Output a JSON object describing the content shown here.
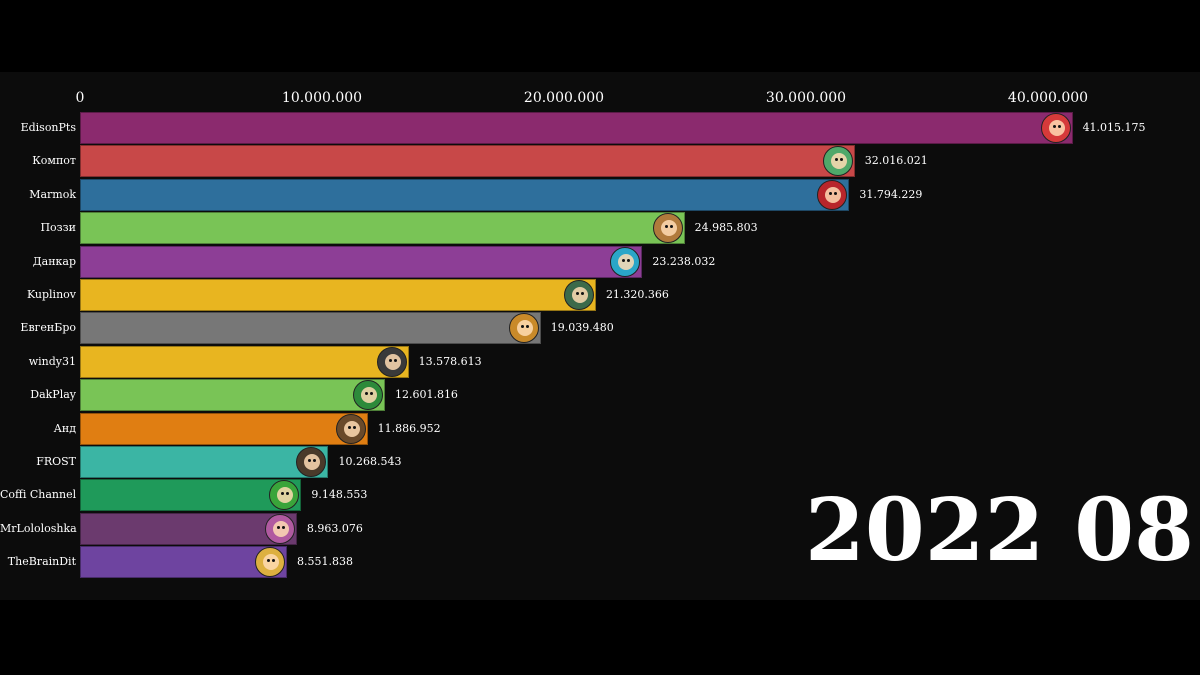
{
  "chart_data": {
    "type": "bar",
    "orientation": "horizontal",
    "title": "",
    "xlabel": "",
    "ylabel": "",
    "xlim": [
      0,
      45000000
    ],
    "grid": false,
    "ticks": [
      {
        "value": 0,
        "label": "0"
      },
      {
        "value": 10000000,
        "label": "10.000.000"
      },
      {
        "value": 20000000,
        "label": "20.000.000"
      },
      {
        "value": 30000000,
        "label": "30.000.000"
      },
      {
        "value": 40000000,
        "label": "40.000.000"
      }
    ],
    "categories": [
      "EdisonPts",
      "Компот",
      "Marmok",
      "Поззи",
      "Данкар",
      "Kuplinov",
      "ЕвгенБро",
      "windy31",
      "DakPlay",
      "Анд",
      "FROST",
      "Coffi Channel",
      "MrLololoshka",
      "TheBrainDit"
    ],
    "values": [
      41015175,
      32016021,
      31794229,
      24985803,
      23238032,
      21320366,
      19039480,
      13578613,
      12601816,
      11886952,
      10268543,
      9148553,
      8963076,
      8551838
    ],
    "value_labels": [
      "41.015.175",
      "32.016.021",
      "31.794.229",
      "24.985.803",
      "23.238.032",
      "21.320.366",
      "19.039.480",
      "13.578.613",
      "12.601.816",
      "11.886.952",
      "10.268.543",
      "9.148.553",
      "8.963.076",
      "8.551.838"
    ],
    "colors": [
      "#8b2a6e",
      "#c84848",
      "#2e6f9c",
      "#79c456",
      "#8d3e96",
      "#e8b520",
      "#777777",
      "#e8b520",
      "#79c456",
      "#e07e12",
      "#3bb5a4",
      "#1f9a5a",
      "#6b3a6e",
      "#6e44a0"
    ],
    "avatar_colors": [
      "#d63a3a",
      "#4fa86a",
      "#b8262b",
      "#b07a3c",
      "#2aa6c8",
      "#3c6a4a",
      "#c98a2a",
      "#3a3a3a",
      "#2d8a3a",
      "#6a4a2a",
      "#4a3a2a",
      "#3aa43a",
      "#b05aa0",
      "#ddb040"
    ],
    "period": "2022 08"
  }
}
